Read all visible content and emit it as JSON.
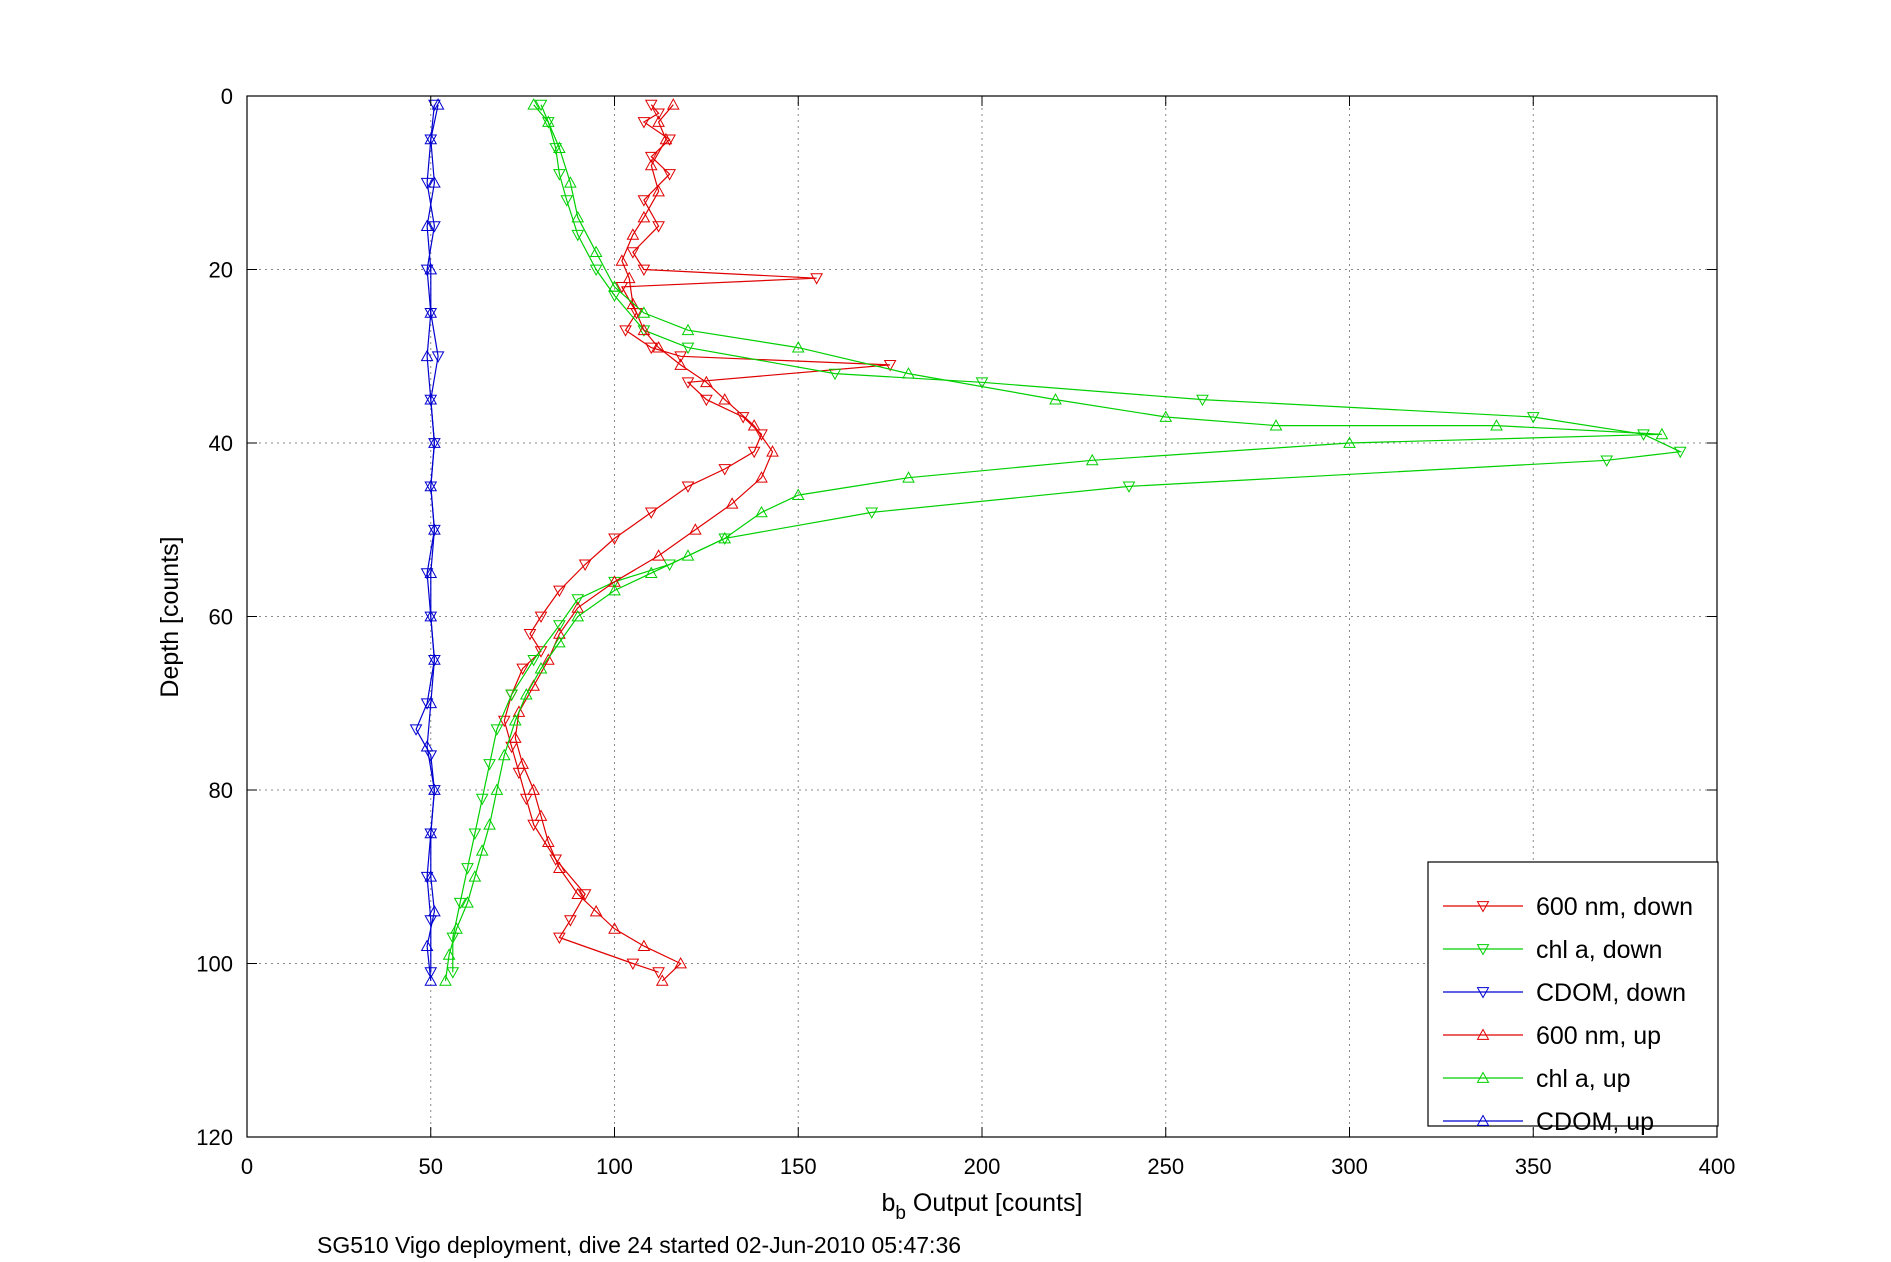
{
  "chart_data": {
    "type": "line",
    "title": "",
    "xlabel_main": "b",
    "xlabel_sub": "b",
    "xlabel_rest": " Output [counts]",
    "ylabel": "Depth [counts]",
    "footer": "SG510 Vigo deployment, dive 24 started 02-Jun-2010 05:47:36",
    "xlim": [
      0,
      400
    ],
    "ylim": [
      0,
      120
    ],
    "y_reversed": true,
    "grid": true,
    "legend_placement": "bottom-right",
    "xticks": [
      "0",
      "50",
      "100",
      "150",
      "200",
      "250",
      "300",
      "350",
      "400"
    ],
    "yticks": [
      "0",
      "20",
      "40",
      "60",
      "80",
      "100",
      "120"
    ],
    "series": [
      {
        "name": "600 nm, down",
        "color": "#e00000",
        "marker": "triangle-down",
        "points": [
          [
            110,
            1
          ],
          [
            112,
            2
          ],
          [
            108,
            3
          ],
          [
            115,
            5
          ],
          [
            110,
            7
          ],
          [
            115,
            9
          ],
          [
            108,
            12
          ],
          [
            112,
            15
          ],
          [
            105,
            18
          ],
          [
            108,
            20
          ],
          [
            155,
            21
          ],
          [
            102,
            22
          ],
          [
            106,
            25
          ],
          [
            103,
            27
          ],
          [
            110,
            29
          ],
          [
            118,
            30
          ],
          [
            175,
            31
          ],
          [
            120,
            33
          ],
          [
            125,
            35
          ],
          [
            135,
            37
          ],
          [
            140,
            39
          ],
          [
            138,
            41
          ],
          [
            130,
            43
          ],
          [
            120,
            45
          ],
          [
            110,
            48
          ],
          [
            100,
            51
          ],
          [
            92,
            54
          ],
          [
            85,
            57
          ],
          [
            80,
            60
          ],
          [
            77,
            62
          ],
          [
            80,
            64
          ],
          [
            75,
            66
          ],
          [
            72,
            69
          ],
          [
            70,
            72
          ],
          [
            72,
            75
          ],
          [
            74,
            78
          ],
          [
            76,
            81
          ],
          [
            78,
            84
          ],
          [
            84,
            88
          ],
          [
            92,
            92
          ],
          [
            88,
            95
          ],
          [
            85,
            97
          ],
          [
            105,
            100
          ],
          [
            112,
            101
          ]
        ]
      },
      {
        "name": "chl a, down",
        "color": "#00d000",
        "marker": "triangle-down",
        "points": [
          [
            80,
            1
          ],
          [
            82,
            3
          ],
          [
            84,
            6
          ],
          [
            85,
            9
          ],
          [
            87,
            12
          ],
          [
            90,
            16
          ],
          [
            95,
            20
          ],
          [
            100,
            23
          ],
          [
            108,
            27
          ],
          [
            120,
            29
          ],
          [
            160,
            32
          ],
          [
            200,
            33
          ],
          [
            260,
            35
          ],
          [
            350,
            37
          ],
          [
            380,
            39
          ],
          [
            390,
            41
          ],
          [
            370,
            42
          ],
          [
            240,
            45
          ],
          [
            170,
            48
          ],
          [
            130,
            51
          ],
          [
            115,
            54
          ],
          [
            100,
            56
          ],
          [
            90,
            58
          ],
          [
            85,
            61
          ],
          [
            78,
            65
          ],
          [
            72,
            69
          ],
          [
            68,
            73
          ],
          [
            66,
            77
          ],
          [
            64,
            81
          ],
          [
            62,
            85
          ],
          [
            60,
            89
          ],
          [
            58,
            93
          ],
          [
            56,
            97
          ],
          [
            56,
            101
          ]
        ]
      },
      {
        "name": "CDOM, down",
        "color": "#0000d0",
        "marker": "triangle-down",
        "points": [
          [
            51,
            1
          ],
          [
            50,
            5
          ],
          [
            49,
            10
          ],
          [
            51,
            15
          ],
          [
            49,
            20
          ],
          [
            50,
            25
          ],
          [
            52,
            30
          ],
          [
            50,
            35
          ],
          [
            51,
            40
          ],
          [
            50,
            45
          ],
          [
            51,
            50
          ],
          [
            49,
            55
          ],
          [
            50,
            60
          ],
          [
            51,
            65
          ],
          [
            49,
            70
          ],
          [
            46,
            73
          ],
          [
            50,
            76
          ],
          [
            51,
            80
          ],
          [
            50,
            85
          ],
          [
            49,
            90
          ],
          [
            50,
            95
          ],
          [
            50,
            101
          ]
        ]
      },
      {
        "name": "600 nm, up",
        "color": "#e00000",
        "marker": "triangle-up",
        "points": [
          [
            113,
            102
          ],
          [
            118,
            100
          ],
          [
            108,
            98
          ],
          [
            100,
            96
          ],
          [
            95,
            94
          ],
          [
            90,
            92
          ],
          [
            85,
            89
          ],
          [
            82,
            86
          ],
          [
            80,
            83
          ],
          [
            78,
            80
          ],
          [
            75,
            77
          ],
          [
            73,
            74
          ],
          [
            74,
            71
          ],
          [
            78,
            68
          ],
          [
            82,
            65
          ],
          [
            85,
            62
          ],
          [
            90,
            59
          ],
          [
            100,
            56
          ],
          [
            112,
            53
          ],
          [
            122,
            50
          ],
          [
            132,
            47
          ],
          [
            140,
            44
          ],
          [
            143,
            41
          ],
          [
            138,
            38
          ],
          [
            130,
            35
          ],
          [
            125,
            33
          ],
          [
            118,
            31
          ],
          [
            112,
            29
          ],
          [
            108,
            27
          ],
          [
            105,
            24
          ],
          [
            104,
            21
          ],
          [
            102,
            19
          ],
          [
            105,
            16
          ],
          [
            108,
            14
          ],
          [
            112,
            11
          ],
          [
            110,
            8
          ],
          [
            114,
            5
          ],
          [
            112,
            3
          ],
          [
            116,
            1
          ]
        ]
      },
      {
        "name": "chl a, up",
        "color": "#00d000",
        "marker": "triangle-up",
        "points": [
          [
            54,
            102
          ],
          [
            55,
            99
          ],
          [
            57,
            96
          ],
          [
            60,
            93
          ],
          [
            62,
            90
          ],
          [
            64,
            87
          ],
          [
            66,
            84
          ],
          [
            68,
            80
          ],
          [
            70,
            76
          ],
          [
            73,
            72
          ],
          [
            76,
            69
          ],
          [
            80,
            66
          ],
          [
            85,
            63
          ],
          [
            90,
            60
          ],
          [
            100,
            57
          ],
          [
            110,
            55
          ],
          [
            120,
            53
          ],
          [
            130,
            51
          ],
          [
            140,
            48
          ],
          [
            150,
            46
          ],
          [
            180,
            44
          ],
          [
            230,
            42
          ],
          [
            300,
            40
          ],
          [
            385,
            39
          ],
          [
            340,
            38
          ],
          [
            280,
            38
          ],
          [
            250,
            37
          ],
          [
            220,
            35
          ],
          [
            180,
            32
          ],
          [
            150,
            29
          ],
          [
            120,
            27
          ],
          [
            108,
            25
          ],
          [
            100,
            22
          ],
          [
            95,
            18
          ],
          [
            90,
            14
          ],
          [
            88,
            10
          ],
          [
            85,
            6
          ],
          [
            82,
            3
          ],
          [
            78,
            1
          ]
        ]
      },
      {
        "name": "CDOM, up",
        "color": "#0000d0",
        "marker": "triangle-up",
        "points": [
          [
            50,
            102
          ],
          [
            49,
            98
          ],
          [
            51,
            94
          ],
          [
            50,
            90
          ],
          [
            50,
            85
          ],
          [
            51,
            80
          ],
          [
            49,
            75
          ],
          [
            50,
            70
          ],
          [
            51,
            65
          ],
          [
            50,
            60
          ],
          [
            50,
            55
          ],
          [
            51,
            50
          ],
          [
            50,
            45
          ],
          [
            51,
            40
          ],
          [
            50,
            35
          ],
          [
            49,
            30
          ],
          [
            50,
            25
          ],
          [
            50,
            20
          ],
          [
            49,
            15
          ],
          [
            51,
            10
          ],
          [
            50,
            5
          ],
          [
            52,
            1
          ]
        ]
      }
    ]
  }
}
